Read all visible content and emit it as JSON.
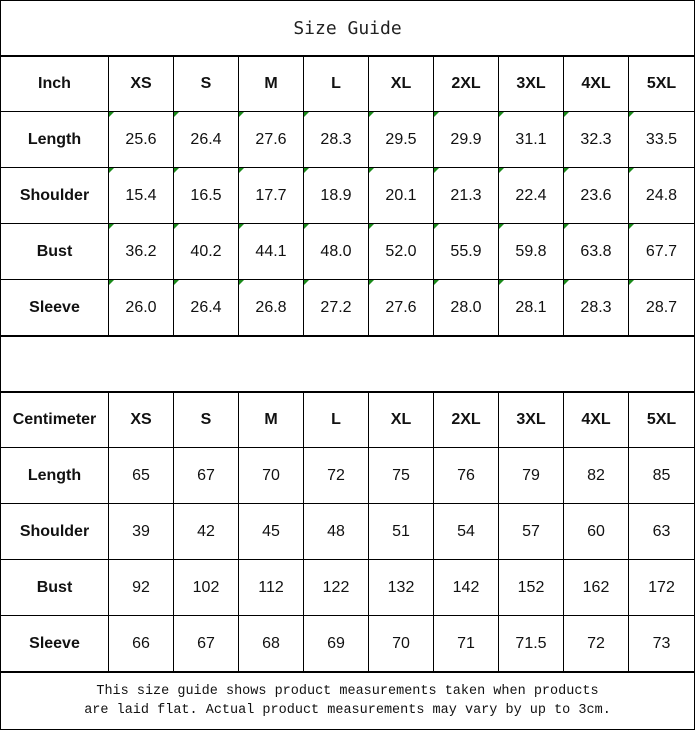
{
  "title": "Size Guide",
  "tables": [
    {
      "unit": "Inch",
      "sizes": [
        "XS",
        "S",
        "M",
        "L",
        "XL",
        "2XL",
        "3XL",
        "4XL",
        "5XL"
      ],
      "rows": [
        {
          "label": "Length",
          "values": [
            "25.6",
            "26.4",
            "27.6",
            "28.3",
            "29.5",
            "29.9",
            "31.1",
            "32.3",
            "33.5"
          ]
        },
        {
          "label": "Shoulder",
          "values": [
            "15.4",
            "16.5",
            "17.7",
            "18.9",
            "20.1",
            "21.3",
            "22.4",
            "23.6",
            "24.8"
          ]
        },
        {
          "label": "Bust",
          "values": [
            "36.2",
            "40.2",
            "44.1",
            "48.0",
            "52.0",
            "55.9",
            "59.8",
            "63.8",
            "67.7"
          ]
        },
        {
          "label": "Sleeve",
          "values": [
            "26.0",
            "26.4",
            "26.8",
            "27.2",
            "27.6",
            "28.0",
            "28.1",
            "28.3",
            "28.7"
          ]
        }
      ],
      "error_marker_color": "#1a8a1a"
    },
    {
      "unit": "Centimeter",
      "sizes": [
        "XS",
        "S",
        "M",
        "L",
        "XL",
        "2XL",
        "3XL",
        "4XL",
        "5XL"
      ],
      "rows": [
        {
          "label": "Length",
          "values": [
            "65",
            "67",
            "70",
            "72",
            "75",
            "76",
            "79",
            "82",
            "85"
          ]
        },
        {
          "label": "Shoulder",
          "values": [
            "39",
            "42",
            "45",
            "48",
            "51",
            "54",
            "57",
            "60",
            "63"
          ]
        },
        {
          "label": "Bust",
          "values": [
            "92",
            "102",
            "112",
            "122",
            "132",
            "142",
            "152",
            "162",
            "172"
          ]
        },
        {
          "label": "Sleeve",
          "values": [
            "66",
            "67",
            "68",
            "69",
            "70",
            "71",
            "71.5",
            "72",
            "73"
          ]
        }
      ]
    }
  ],
  "footer": {
    "line1": "This size guide shows product measurements taken when products",
    "line2": "are laid flat. Actual product measurements may vary by up to 3cm."
  }
}
